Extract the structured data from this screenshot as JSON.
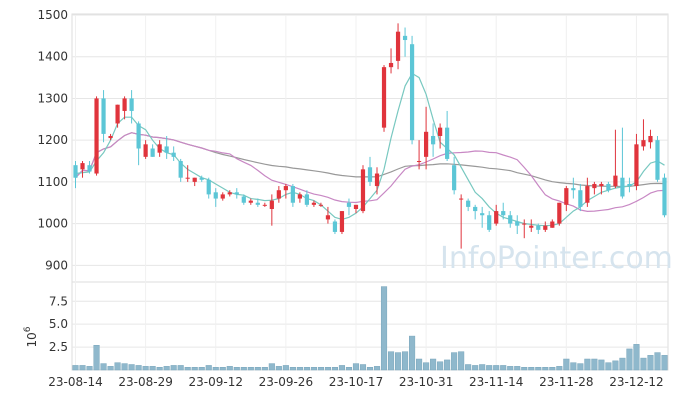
{
  "watermark": "InfoPointer.com",
  "colors": {
    "up": "#e0343c",
    "down": "#5cc6d6",
    "ma5": "#78c8c0",
    "ma20": "#c888c4",
    "ma60": "#999999",
    "volume": "#8fb8cc",
    "grid": "#e6e6e6",
    "frame": "#dddddd"
  },
  "chart_data": [
    {
      "type": "candlestick",
      "ylim": [
        860,
        1500
      ],
      "yticks": [
        900,
        1000,
        1100,
        1200,
        1300,
        1400,
        1500
      ],
      "xticks": [
        "23-08-14",
        "23-08-29",
        "23-09-12",
        "23-09-26",
        "23-10-17",
        "23-10-31",
        "23-11-14",
        "23-11-28",
        "23-12-12"
      ],
      "xtick_index": [
        0,
        10,
        20,
        30,
        40,
        50,
        60,
        70,
        80
      ],
      "grid": true,
      "ohlc": [
        [
          1140,
          1150,
          1085,
          1110
        ],
        [
          1130,
          1150,
          1110,
          1145
        ],
        [
          1140,
          1150,
          1120,
          1125
        ],
        [
          1120,
          1305,
          1115,
          1300
        ],
        [
          1300,
          1320,
          1195,
          1215
        ],
        [
          1205,
          1215,
          1200,
          1210
        ],
        [
          1240,
          1285,
          1230,
          1285
        ],
        [
          1270,
          1305,
          1250,
          1300
        ],
        [
          1300,
          1320,
          1240,
          1270
        ],
        [
          1240,
          1245,
          1140,
          1180
        ],
        [
          1160,
          1200,
          1155,
          1190
        ],
        [
          1180,
          1190,
          1160,
          1160
        ],
        [
          1170,
          1200,
          1160,
          1190
        ],
        [
          1185,
          1210,
          1155,
          1170
        ],
        [
          1170,
          1185,
          1150,
          1160
        ],
        [
          1150,
          1155,
          1100,
          1110
        ],
        [
          1110,
          1140,
          1100,
          1110
        ],
        [
          1100,
          1110,
          1090,
          1110
        ],
        [
          1110,
          1115,
          1100,
          1105
        ],
        [
          1105,
          1110,
          1060,
          1070
        ],
        [
          1075,
          1085,
          1040,
          1060
        ],
        [
          1060,
          1075,
          1055,
          1070
        ],
        [
          1070,
          1080,
          1065,
          1075
        ],
        [
          1075,
          1085,
          1060,
          1070
        ],
        [
          1065,
          1070,
          1045,
          1050
        ],
        [
          1050,
          1060,
          1045,
          1055
        ],
        [
          1050,
          1060,
          1040,
          1045
        ],
        [
          1045,
          1050,
          1040,
          1045
        ],
        [
          1035,
          1070,
          995,
          1055
        ],
        [
          1060,
          1090,
          1050,
          1080
        ],
        [
          1080,
          1095,
          1060,
          1090
        ],
        [
          1090,
          1095,
          1040,
          1050
        ],
        [
          1060,
          1075,
          1050,
          1070
        ],
        [
          1070,
          1080,
          1040,
          1045
        ],
        [
          1045,
          1055,
          1040,
          1050
        ],
        [
          1045,
          1050,
          1040,
          1045
        ],
        [
          1010,
          1040,
          1000,
          1020
        ],
        [
          1005,
          1010,
          975,
          980
        ],
        [
          980,
          1030,
          975,
          1030
        ],
        [
          1050,
          1060,
          1020,
          1040
        ],
        [
          1035,
          1045,
          1025,
          1045
        ],
        [
          1030,
          1140,
          1025,
          1130
        ],
        [
          1135,
          1160,
          1090,
          1100
        ],
        [
          1090,
          1135,
          1070,
          1120
        ],
        [
          1230,
          1380,
          1220,
          1375
        ],
        [
          1375,
          1420,
          1360,
          1385
        ],
        [
          1390,
          1480,
          1370,
          1460
        ],
        [
          1450,
          1470,
          1400,
          1440
        ],
        [
          1430,
          1450,
          1190,
          1200
        ],
        [
          1150,
          1200,
          1130,
          1150
        ],
        [
          1160,
          1280,
          1130,
          1220
        ],
        [
          1210,
          1240,
          1160,
          1190
        ],
        [
          1210,
          1240,
          1180,
          1230
        ],
        [
          1230,
          1270,
          1150,
          1155
        ],
        [
          1140,
          1160,
          1070,
          1080
        ],
        [
          1060,
          1070,
          940,
          1060
        ],
        [
          1055,
          1060,
          1030,
          1040
        ],
        [
          1040,
          1045,
          1010,
          1030
        ],
        [
          1025,
          1040,
          990,
          1020
        ],
        [
          1020,
          1030,
          980,
          985
        ],
        [
          1000,
          1045,
          995,
          1030
        ],
        [
          1030,
          1050,
          1010,
          1020
        ],
        [
          1020,
          1030,
          990,
          1000
        ],
        [
          1005,
          1020,
          975,
          995
        ],
        [
          1000,
          1010,
          965,
          1000
        ],
        [
          990,
          1010,
          980,
          995
        ],
        [
          995,
          1000,
          975,
          985
        ],
        [
          985,
          1005,
          980,
          995
        ],
        [
          990,
          1010,
          990,
          1005
        ],
        [
          1000,
          1050,
          995,
          1050
        ],
        [
          1045,
          1090,
          1030,
          1085
        ],
        [
          1085,
          1110,
          1060,
          1080
        ],
        [
          1080,
          1095,
          1030,
          1040
        ],
        [
          1050,
          1110,
          1040,
          1090
        ],
        [
          1085,
          1100,
          1070,
          1095
        ],
        [
          1090,
          1100,
          1070,
          1095
        ],
        [
          1095,
          1100,
          1075,
          1080
        ],
        [
          1090,
          1225,
          1085,
          1115
        ],
        [
          1110,
          1230,
          1060,
          1065
        ],
        [
          1095,
          1110,
          1075,
          1090
        ],
        [
          1090,
          1215,
          1080,
          1190
        ],
        [
          1185,
          1250,
          1175,
          1200
        ],
        [
          1195,
          1225,
          1180,
          1210
        ],
        [
          1200,
          1210,
          1100,
          1105
        ],
        [
          1110,
          1120,
          1015,
          1020
        ]
      ],
      "ma5": [
        1120,
        1122,
        1124,
        1150,
        1170,
        1200,
        1240,
        1255,
        1255,
        1235,
        1225,
        1200,
        1180,
        1170,
        1165,
        1145,
        1130,
        1120,
        1110,
        1105,
        1095,
        1085,
        1075,
        1070,
        1068,
        1060,
        1058,
        1055,
        1056,
        1060,
        1070,
        1075,
        1070,
        1060,
        1055,
        1045,
        1030,
        1015,
        1010,
        1015,
        1025,
        1040,
        1060,
        1080,
        1130,
        1205,
        1270,
        1330,
        1360,
        1350,
        1310,
        1250,
        1195,
        1180,
        1165,
        1135,
        1105,
        1075,
        1060,
        1040,
        1025,
        1015,
        1010,
        1005,
        1000,
        998,
        996,
        995,
        996,
        1000,
        1015,
        1030,
        1040,
        1055,
        1065,
        1075,
        1080,
        1085,
        1088,
        1090,
        1100,
        1125,
        1145,
        1150,
        1140
      ]
    },
    {
      "type": "bar",
      "title": "",
      "ylabel": "10^6",
      "ylim": [
        0,
        9.6
      ],
      "yticks": [
        2.5,
        5.0,
        7.5
      ],
      "ytick_labels": [
        "2.5",
        "5.0",
        "7.5"
      ],
      "values": [
        0.5,
        0.5,
        0.4,
        2.7,
        0.7,
        0.4,
        0.8,
        0.7,
        0.6,
        0.5,
        0.4,
        0.4,
        0.3,
        0.4,
        0.5,
        0.5,
        0.3,
        0.3,
        0.3,
        0.5,
        0.3,
        0.3,
        0.4,
        0.3,
        0.3,
        0.3,
        0.3,
        0.3,
        0.7,
        0.4,
        0.5,
        0.3,
        0.3,
        0.3,
        0.3,
        0.3,
        0.3,
        0.3,
        0.5,
        0.3,
        0.7,
        0.6,
        0.3,
        0.4,
        9.1,
        2.0,
        1.9,
        2.0,
        3.7,
        1.2,
        0.8,
        1.2,
        0.9,
        1.1,
        1.9,
        2.0,
        0.6,
        0.5,
        0.6,
        0.5,
        0.5,
        0.5,
        0.4,
        0.4,
        0.3,
        0.3,
        0.3,
        0.3,
        0.3,
        0.4,
        1.2,
        0.8,
        0.7,
        1.2,
        1.2,
        1.1,
        0.8,
        1.0,
        1.3,
        2.3,
        2.8,
        1.3,
        1.6,
        1.9,
        1.6
      ]
    }
  ]
}
